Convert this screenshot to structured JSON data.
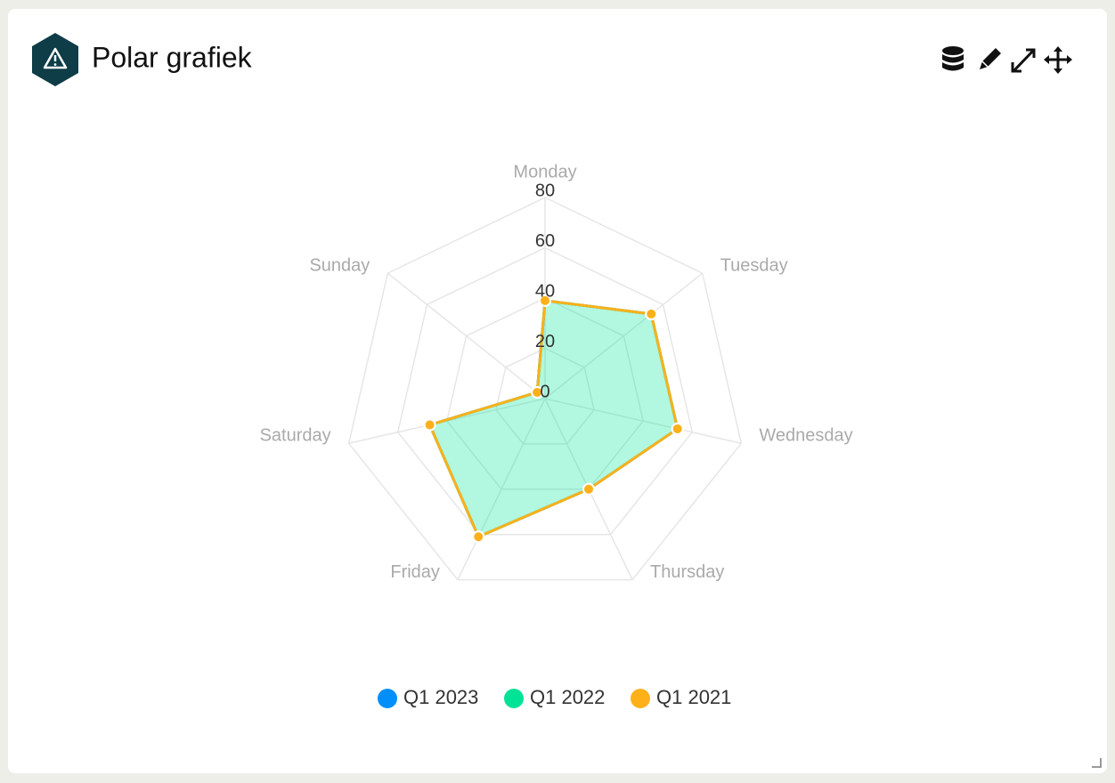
{
  "header": {
    "title": "Polar grafiek"
  },
  "chart_data": {
    "type": "radar",
    "categories": [
      "Monday",
      "Tuesday",
      "Wednesday",
      "Thursday",
      "Friday",
      "Saturday",
      "Sunday"
    ],
    "series": [
      {
        "name": "Q1 2023",
        "color": "#008ffb",
        "area": false,
        "values": [
          39,
          54,
          54,
          40,
          61,
          47,
          4
        ]
      },
      {
        "name": "Q1 2022",
        "color": "#00e396",
        "area": true,
        "values": [
          39,
          54,
          54,
          40,
          61,
          47,
          4
        ]
      },
      {
        "name": "Q1 2021",
        "color": "#feb019",
        "area": false,
        "values": [
          39,
          54,
          54,
          40,
          61,
          47,
          4
        ]
      }
    ],
    "rlim": [
      0,
      80
    ],
    "rticks": [
      0,
      20,
      40,
      60,
      80
    ],
    "grid": true,
    "legend": "bottom"
  }
}
